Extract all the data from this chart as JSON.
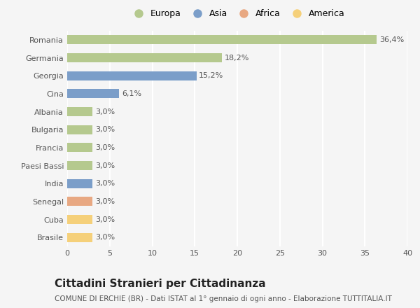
{
  "categories": [
    "Romania",
    "Germania",
    "Georgia",
    "Cina",
    "Albania",
    "Bulgaria",
    "Francia",
    "Paesi Bassi",
    "India",
    "Senegal",
    "Cuba",
    "Brasile"
  ],
  "values": [
    36.4,
    18.2,
    15.2,
    6.1,
    3.0,
    3.0,
    3.0,
    3.0,
    3.0,
    3.0,
    3.0,
    3.0
  ],
  "labels": [
    "36,4%",
    "18,2%",
    "15,2%",
    "6,1%",
    "3,0%",
    "3,0%",
    "3,0%",
    "3,0%",
    "3,0%",
    "3,0%",
    "3,0%",
    "3,0%"
  ],
  "colors": [
    "#b5c98e",
    "#b5c98e",
    "#7b9ec9",
    "#7b9ec9",
    "#b5c98e",
    "#b5c98e",
    "#b5c98e",
    "#b5c98e",
    "#7b9ec9",
    "#e8a882",
    "#f5d07a",
    "#f5d07a"
  ],
  "legend_labels": [
    "Europa",
    "Asia",
    "Africa",
    "America"
  ],
  "legend_colors": [
    "#b5c98e",
    "#7b9ec9",
    "#e8a882",
    "#f5d07a"
  ],
  "xlim": [
    0,
    40
  ],
  "xticks": [
    0,
    5,
    10,
    15,
    20,
    25,
    30,
    35,
    40
  ],
  "title": "Cittadini Stranieri per Cittadinanza",
  "subtitle": "COMUNE DI ERCHIE (BR) - Dati ISTAT al 1° gennaio di ogni anno - Elaborazione TUTTITALIA.IT",
  "bg_color": "#f5f5f5",
  "grid_color": "#ffffff",
  "bar_height": 0.5,
  "title_fontsize": 11,
  "subtitle_fontsize": 7.5,
  "label_fontsize": 8,
  "tick_fontsize": 8
}
